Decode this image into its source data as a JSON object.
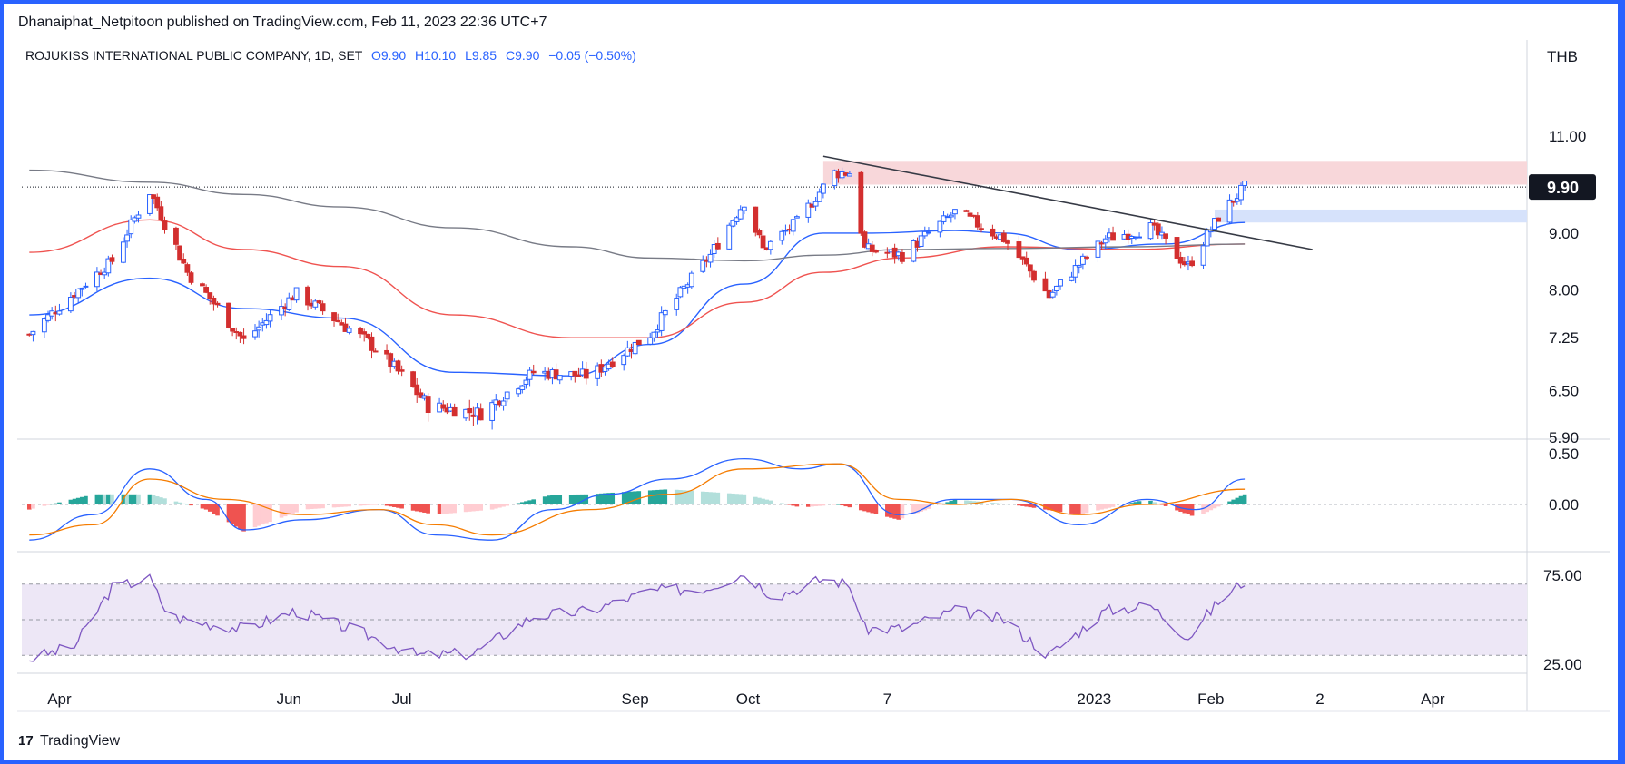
{
  "header": {
    "publisher": "Dhanaiphat_Netpitoon published on TradingView.com, Feb 11, 2023 22:36 UTC+7",
    "symbol": "ROJUKISS INTERNATIONAL PUBLIC COMPANY, 1D, SET",
    "ohlc_o": "O9.90",
    "ohlc_h": "H10.10",
    "ohlc_l": "L9.85",
    "ohlc_c": "C9.90",
    "change": "−0.05 (−0.50%)"
  },
  "currency": "THB",
  "footer": {
    "brand": "TradingView",
    "logo_text": "17"
  },
  "colors": {
    "up": "#2962ff",
    "down": "#d32f2f",
    "ma_fast": "#2962ff",
    "ma_mid": "#ef5350",
    "ma_slow": "#787b86",
    "trendline": "#363a45",
    "resistance_zone": "#f8d7da",
    "support_zone": "#d6e2fb",
    "macd_line": "#2962ff",
    "signal_line": "#f57c00",
    "hist_pos": "#26a69a",
    "hist_pos_light": "#b2dfdb",
    "hist_neg": "#ef5350",
    "hist_neg_light": "#ffcdd2",
    "rsi_line": "#7e57c2",
    "rsi_band": "#ede7f6"
  },
  "chart_data": {
    "price_panel": {
      "type": "candlestick",
      "y_axis_labels": [
        "11.00",
        "9.00",
        "8.00",
        "7.25",
        "6.50",
        "5.90"
      ],
      "y_axis_scale": "log",
      "last_price_label": "9.90",
      "last_price": 9.9,
      "resistance_zone": [
        9.95,
        10.45
      ],
      "support_zone": [
        9.2,
        9.45
      ],
      "trendline": {
        "from": {
          "date": "2022-10-21",
          "price": 10.55
        },
        "to": {
          "date": "2023-02-28",
          "price": 8.7
        }
      },
      "candle_keypoints": [
        {
          "date": "2022-03-24",
          "close": 7.3
        },
        {
          "date": "2022-04-15",
          "close": 8.5
        },
        {
          "date": "2022-04-25",
          "close": 9.8
        },
        {
          "date": "2022-05-05",
          "close": 8.3
        },
        {
          "date": "2022-05-20",
          "close": 7.2
        },
        {
          "date": "2022-06-03",
          "close": 7.95
        },
        {
          "date": "2022-06-24",
          "close": 7.1
        },
        {
          "date": "2022-07-08",
          "close": 6.3
        },
        {
          "date": "2022-07-22",
          "close": 6.2
        },
        {
          "date": "2022-08-05",
          "close": 6.75
        },
        {
          "date": "2022-08-20",
          "close": 6.7
        },
        {
          "date": "2022-09-05",
          "close": 7.3
        },
        {
          "date": "2022-09-21",
          "close": 8.6
        },
        {
          "date": "2022-09-30",
          "close": 9.6
        },
        {
          "date": "2022-10-05",
          "close": 8.7
        },
        {
          "date": "2022-10-14",
          "close": 9.2
        },
        {
          "date": "2022-10-24",
          "close": 10.2
        },
        {
          "date": "2022-10-28",
          "close": 10.2
        },
        {
          "date": "2022-11-01",
          "close": 8.7
        },
        {
          "date": "2022-11-11",
          "close": 8.6
        },
        {
          "date": "2022-11-25",
          "close": 9.4
        },
        {
          "date": "2022-12-08",
          "close": 8.9
        },
        {
          "date": "2022-12-20",
          "close": 7.9
        },
        {
          "date": "2023-01-04",
          "close": 8.9
        },
        {
          "date": "2023-01-16",
          "close": 9.1
        },
        {
          "date": "2023-01-26",
          "close": 8.4
        },
        {
          "date": "2023-02-03",
          "close": 9.3
        },
        {
          "date": "2023-02-10",
          "close": 9.9
        }
      ],
      "moving_averages": [
        {
          "color": "ma_fast",
          "points": [
            [
              "2022-03-24",
              7.6
            ],
            [
              "2022-04-25",
              8.2
            ],
            [
              "2022-05-20",
              7.7
            ],
            [
              "2022-06-15",
              7.55
            ],
            [
              "2022-07-15",
              6.75
            ],
            [
              "2022-08-15",
              6.7
            ],
            [
              "2022-09-05",
              7.15
            ],
            [
              "2022-09-30",
              8.1
            ],
            [
              "2022-10-21",
              9.0
            ],
            [
              "2022-11-03",
              9.0
            ],
            [
              "2022-11-25",
              9.05
            ],
            [
              "2022-12-08",
              9.0
            ],
            [
              "2022-12-28",
              8.7
            ],
            [
              "2023-01-20",
              8.8
            ],
            [
              "2023-02-10",
              9.2
            ]
          ]
        },
        {
          "color": "ma_mid",
          "points": [
            [
              "2022-03-24",
              8.65
            ],
            [
              "2022-04-25",
              9.25
            ],
            [
              "2022-05-20",
              8.7
            ],
            [
              "2022-06-15",
              8.4
            ],
            [
              "2022-07-15",
              7.6
            ],
            [
              "2022-08-15",
              7.25
            ],
            [
              "2022-09-05",
              7.25
            ],
            [
              "2022-09-30",
              7.8
            ],
            [
              "2022-10-21",
              8.3
            ],
            [
              "2022-11-11",
              8.55
            ],
            [
              "2022-12-08",
              8.75
            ],
            [
              "2023-01-10",
              8.7
            ],
            [
              "2023-02-10",
              8.8
            ]
          ]
        },
        {
          "color": "ma_slow",
          "points": [
            [
              "2022-03-24",
              10.25
            ],
            [
              "2022-04-25",
              10.0
            ],
            [
              "2022-05-20",
              9.75
            ],
            [
              "2022-06-15",
              9.5
            ],
            [
              "2022-07-15",
              9.1
            ],
            [
              "2022-08-15",
              8.75
            ],
            [
              "2022-09-05",
              8.55
            ],
            [
              "2022-09-30",
              8.5
            ],
            [
              "2022-10-21",
              8.6
            ],
            [
              "2022-11-11",
              8.7
            ],
            [
              "2022-12-08",
              8.72
            ],
            [
              "2023-01-10",
              8.75
            ],
            [
              "2023-02-10",
              8.8
            ]
          ]
        }
      ]
    },
    "macd_panel": {
      "type": "line",
      "y_axis_labels": [
        "0.50",
        "0.00"
      ],
      "macd": [
        [
          "2022-03-24",
          -0.35
        ],
        [
          "2022-04-10",
          -0.1
        ],
        [
          "2022-04-25",
          0.35
        ],
        [
          "2022-05-10",
          0.05
        ],
        [
          "2022-05-20",
          -0.25
        ],
        [
          "2022-06-05",
          -0.15
        ],
        [
          "2022-06-25",
          -0.05
        ],
        [
          "2022-07-10",
          -0.3
        ],
        [
          "2022-07-25",
          -0.35
        ],
        [
          "2022-08-10",
          -0.05
        ],
        [
          "2022-08-25",
          0.1
        ],
        [
          "2022-09-10",
          0.25
        ],
        [
          "2022-09-30",
          0.45
        ],
        [
          "2022-10-15",
          0.35
        ],
        [
          "2022-10-25",
          0.4
        ],
        [
          "2022-11-10",
          -0.1
        ],
        [
          "2022-11-25",
          0.05
        ],
        [
          "2022-12-10",
          0.05
        ],
        [
          "2022-12-28",
          -0.2
        ],
        [
          "2023-01-15",
          0.05
        ],
        [
          "2023-01-28",
          -0.05
        ],
        [
          "2023-02-10",
          0.25
        ]
      ],
      "signal": [
        [
          "2022-03-24",
          -0.3
        ],
        [
          "2022-04-10",
          -0.2
        ],
        [
          "2022-04-25",
          0.25
        ],
        [
          "2022-05-15",
          0.05
        ],
        [
          "2022-06-05",
          -0.1
        ],
        [
          "2022-06-25",
          -0.05
        ],
        [
          "2022-07-10",
          -0.2
        ],
        [
          "2022-07-25",
          -0.3
        ],
        [
          "2022-08-20",
          -0.05
        ],
        [
          "2022-09-10",
          0.1
        ],
        [
          "2022-09-30",
          0.35
        ],
        [
          "2022-10-25",
          0.4
        ],
        [
          "2022-11-10",
          0.05
        ],
        [
          "2022-11-25",
          0.0
        ],
        [
          "2022-12-10",
          0.05
        ],
        [
          "2022-12-28",
          -0.1
        ],
        [
          "2023-01-15",
          0.0
        ],
        [
          "2023-02-10",
          0.15
        ]
      ]
    },
    "rsi_panel": {
      "type": "line",
      "y_axis_labels": [
        "75.00",
        "25.00"
      ],
      "band": [
        30,
        70
      ],
      "midline": 50,
      "rsi": [
        [
          "2022-03-24",
          28
        ],
        [
          "2022-04-05",
          35
        ],
        [
          "2022-04-15",
          68
        ],
        [
          "2022-04-25",
          73
        ],
        [
          "2022-04-30",
          52
        ],
        [
          "2022-05-10",
          48
        ],
        [
          "2022-05-20",
          45
        ],
        [
          "2022-06-03",
          55
        ],
        [
          "2022-06-20",
          43
        ],
        [
          "2022-07-05",
          30
        ],
        [
          "2022-07-20",
          31
        ],
        [
          "2022-08-05",
          52
        ],
        [
          "2022-08-20",
          55
        ],
        [
          "2022-09-05",
          66
        ],
        [
          "2022-09-20",
          68
        ],
        [
          "2022-09-30",
          76
        ],
        [
          "2022-10-08",
          63
        ],
        [
          "2022-10-21",
          73
        ],
        [
          "2022-10-28",
          70
        ],
        [
          "2022-11-01",
          45
        ],
        [
          "2022-11-11",
          45
        ],
        [
          "2022-11-25",
          55
        ],
        [
          "2022-12-08",
          50
        ],
        [
          "2022-12-20",
          30
        ],
        [
          "2023-01-04",
          55
        ],
        [
          "2023-01-16",
          58
        ],
        [
          "2023-01-26",
          40
        ],
        [
          "2023-02-03",
          60
        ],
        [
          "2023-02-10",
          72
        ]
      ]
    },
    "x_axis_labels": [
      {
        "label": "Apr",
        "date": "2022-04-01"
      },
      {
        "label": "Jun",
        "date": "2022-06-01"
      },
      {
        "label": "Jul",
        "date": "2022-07-01"
      },
      {
        "label": "Sep",
        "date": "2022-09-01"
      },
      {
        "label": "Oct",
        "date": "2022-10-01"
      },
      {
        "label": "7",
        "date": "2022-11-07"
      },
      {
        "label": "2023",
        "date": "2023-01-01"
      },
      {
        "label": "Feb",
        "date": "2023-02-01"
      },
      {
        "label": "2",
        "date": "2023-03-02"
      },
      {
        "label": "Apr",
        "date": "2023-04-01"
      }
    ]
  }
}
